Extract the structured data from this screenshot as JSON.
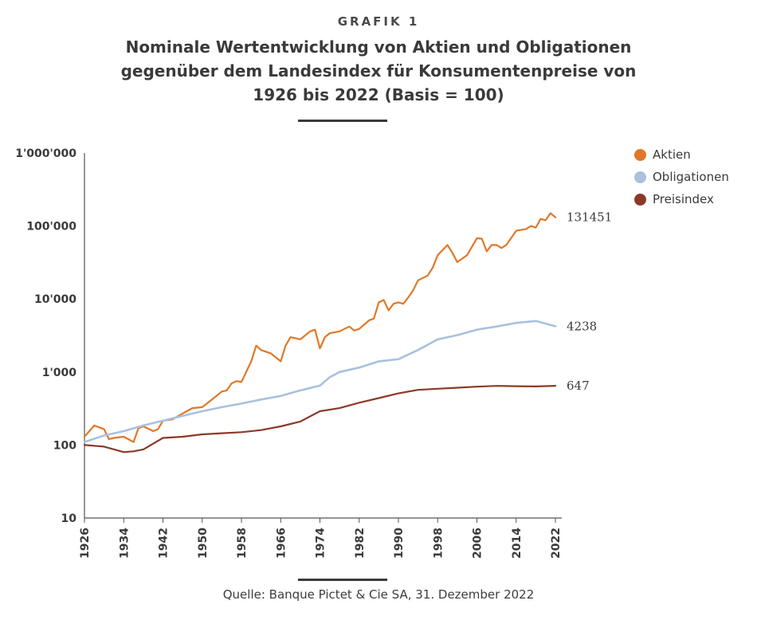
{
  "header": {
    "kicker": "GRAFIK 1",
    "title": "Nominale Wertentwicklung von Aktien und Obligationen gegenüber dem Landesindex für Konsumentenpreise von 1926 bis 2022 (Basis = 100)"
  },
  "footer": {
    "source": "Quelle: Banque Pictet & Cie SA, 31. Dezember 2022"
  },
  "chart_data": {
    "type": "line",
    "title": "Nominale Wertentwicklung von Aktien und Obligationen gegenüber dem Landesindex für Konsumentenpreise von 1926 bis 2022 (Basis = 100)",
    "y_scale": "log",
    "ylim": [
      10,
      1000000
    ],
    "xlim": [
      1926,
      2022
    ],
    "y_ticks": [
      {
        "value": 10,
        "label": "10"
      },
      {
        "value": 100,
        "label": "100"
      },
      {
        "value": 1000,
        "label": "1'000"
      },
      {
        "value": 10000,
        "label": "10'000"
      },
      {
        "value": 100000,
        "label": "100'000"
      },
      {
        "value": 1000000,
        "label": "1'000'000"
      }
    ],
    "x_ticks": [
      1926,
      1934,
      1942,
      1950,
      1958,
      1966,
      1974,
      1982,
      1990,
      1998,
      2006,
      2014,
      2022
    ],
    "grid": false,
    "legend_position": "top-right",
    "series": [
      {
        "name": "Aktien",
        "color": "#e07828",
        "end_label": "131451",
        "x": [
          1926,
          1928,
          1930,
          1931,
          1932,
          1934,
          1936,
          1937,
          1938,
          1940,
          1941,
          1942,
          1944,
          1946,
          1948,
          1950,
          1952,
          1954,
          1955,
          1956,
          1957,
          1958,
          1960,
          1961,
          1962,
          1964,
          1966,
          1967,
          1968,
          1970,
          1972,
          1973,
          1974,
          1975,
          1976,
          1978,
          1980,
          1981,
          1982,
          1984,
          1985,
          1986,
          1987,
          1988,
          1989,
          1990,
          1991,
          1992,
          1993,
          1994,
          1996,
          1997,
          1998,
          2000,
          2001,
          2002,
          2004,
          2006,
          2007,
          2008,
          2009,
          2010,
          2011,
          2012,
          2014,
          2016,
          2017,
          2018,
          2019,
          2020,
          2021,
          2022
        ],
        "y": [
          130,
          185,
          165,
          120,
          125,
          130,
          110,
          170,
          180,
          155,
          165,
          215,
          225,
          270,
          320,
          330,
          420,
          540,
          560,
          700,
          750,
          730,
          1400,
          2300,
          2000,
          1800,
          1400,
          2300,
          3000,
          2800,
          3600,
          3800,
          2100,
          3000,
          3400,
          3600,
          4200,
          3700,
          3900,
          5100,
          5400,
          9000,
          9700,
          7000,
          8600,
          9000,
          8600,
          10500,
          13200,
          18000,
          21000,
          27000,
          40000,
          55000,
          43000,
          32000,
          40000,
          68000,
          67000,
          45000,
          55000,
          55000,
          50000,
          55000,
          86000,
          91000,
          100000,
          95000,
          125000,
          120000,
          150000,
          131451
        ]
      },
      {
        "name": "Obligationen",
        "color": "#a9c1de",
        "end_label": "4238",
        "x": [
          1926,
          1930,
          1934,
          1938,
          1942,
          1946,
          1950,
          1954,
          1958,
          1962,
          1966,
          1970,
          1974,
          1976,
          1978,
          1982,
          1986,
          1990,
          1994,
          1998,
          2002,
          2006,
          2010,
          2014,
          2018,
          2022
        ],
        "y": [
          110,
          135,
          155,
          185,
          215,
          250,
          290,
          330,
          370,
          420,
          470,
          560,
          650,
          850,
          1000,
          1150,
          1400,
          1500,
          2000,
          2800,
          3200,
          3800,
          4200,
          4700,
          5000,
          4238
        ]
      },
      {
        "name": "Preisindex",
        "color": "#8b3a28",
        "end_label": "647",
        "x": [
          1926,
          1930,
          1934,
          1936,
          1938,
          1942,
          1946,
          1950,
          1954,
          1958,
          1962,
          1966,
          1970,
          1974,
          1978,
          1982,
          1986,
          1990,
          1994,
          1998,
          2002,
          2006,
          2010,
          2014,
          2018,
          2022
        ],
        "y": [
          100,
          95,
          80,
          82,
          87,
          125,
          130,
          140,
          145,
          150,
          160,
          180,
          210,
          290,
          320,
          380,
          440,
          510,
          570,
          590,
          610,
          630,
          645,
          640,
          635,
          647
        ]
      }
    ]
  }
}
